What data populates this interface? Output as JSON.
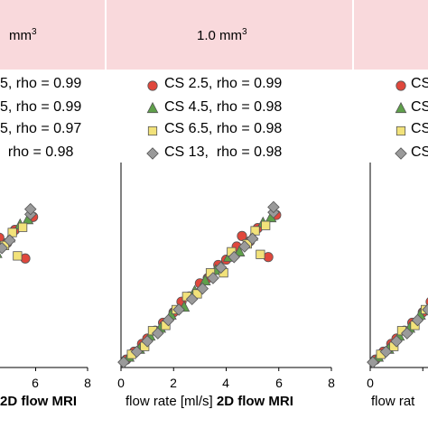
{
  "headers": {
    "left": "mm",
    "left_sup": "3",
    "middle": "1.0 mm",
    "middle_sup": "3"
  },
  "legend_left": {
    "rows": [
      "5, rho = 0.99",
      "5, rho = 0.99",
      "5, rho = 0.97",
      "  rho = 0.98"
    ]
  },
  "legend_middle": {
    "rows": [
      {
        "label": "CS",
        "rest": " 2.5, rho = 0.99",
        "marker": "circle",
        "color": "#e0473c"
      },
      {
        "label": "CS",
        "rest": " 4.5, rho = 0.98",
        "marker": "triangle",
        "color": "#5fa04a"
      },
      {
        "label": "CS",
        "rest": " 6.5, rho = 0.98",
        "marker": "square",
        "color": "#f2e27a"
      },
      {
        "label": "CS",
        "rest": " 13,  rho = 0.98",
        "marker": "diamond",
        "color": "#9a9a9a"
      }
    ]
  },
  "legend_right": {
    "rows": [
      "CS",
      "CS",
      "CS",
      "CS"
    ]
  },
  "axes": {
    "left_ticks": [
      "6",
      "8"
    ],
    "middle_ticks": [
      "0",
      "2",
      "4",
      "6",
      "8"
    ],
    "right_ticks": [
      "0"
    ],
    "left_xlabel_bold": "2D flow MRI",
    "middle_xlabel": "flow rate [ml/s] ",
    "middle_xlabel_bold": "2D flow MRI",
    "right_xlabel": "flow rat"
  },
  "chart_data": {
    "type": "scatter",
    "xlabel": "flow rate [ml/s] 2D flow MRI",
    "xlim": [
      0,
      8
    ],
    "series": [
      {
        "name": "CS 2.5, rho = 0.99",
        "marker": "circle",
        "color": "#e0473c",
        "x": [
          0.2,
          0.5,
          0.8,
          1.0,
          1.3,
          1.6,
          2.0,
          2.3,
          2.6,
          3.0,
          3.3,
          3.7,
          4.0,
          4.4,
          4.6,
          4.9,
          5.2,
          5.6,
          5.9
        ],
        "y": [
          0.3,
          0.6,
          0.9,
          1.1,
          1.4,
          1.7,
          2.1,
          2.5,
          2.7,
          3.2,
          3.4,
          3.9,
          4.1,
          4.6,
          5.0,
          4.8,
          5.3,
          4.2,
          5.8
        ]
      },
      {
        "name": "CS 4.5, rho = 0.98",
        "marker": "triangle",
        "color": "#5fa04a",
        "x": [
          0.3,
          0.7,
          1.1,
          1.5,
          1.9,
          2.4,
          2.8,
          3.2,
          3.6,
          4.1,
          4.5,
          5.0,
          5.4,
          5.7
        ],
        "y": [
          0.4,
          0.7,
          1.2,
          1.5,
          2.0,
          2.3,
          2.9,
          3.3,
          3.7,
          4.2,
          4.4,
          5.0,
          5.5,
          5.7
        ]
      },
      {
        "name": "CS 6.5, rho = 0.98",
        "marker": "square",
        "color": "#f2e27a",
        "x": [
          0.4,
          0.9,
          1.2,
          1.7,
          2.1,
          2.5,
          2.9,
          3.4,
          3.9,
          4.2,
          4.8,
          5.1,
          5.3,
          5.5
        ],
        "y": [
          0.5,
          0.8,
          1.4,
          1.6,
          2.2,
          2.7,
          2.8,
          3.6,
          3.6,
          4.4,
          4.7,
          5.2,
          4.3,
          5.4
        ]
      },
      {
        "name": "CS 13, rho = 0.98",
        "marker": "diamond",
        "color": "#9a9a9a",
        "x": [
          0.1,
          0.6,
          1.0,
          1.4,
          1.8,
          2.2,
          2.7,
          3.1,
          3.5,
          3.8,
          4.3,
          4.7,
          5.0,
          5.8,
          5.8
        ],
        "y": [
          0.2,
          0.6,
          1.0,
          1.3,
          1.8,
          2.2,
          2.6,
          3.0,
          3.4,
          3.8,
          4.2,
          4.6,
          4.9,
          5.9,
          6.1
        ]
      }
    ]
  }
}
